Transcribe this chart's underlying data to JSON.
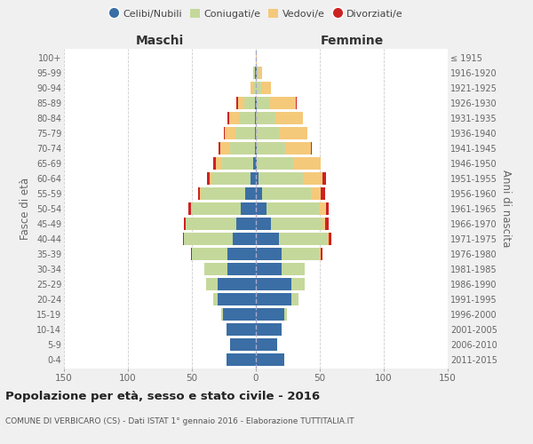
{
  "age_groups": [
    "0-4",
    "5-9",
    "10-14",
    "15-19",
    "20-24",
    "25-29",
    "30-34",
    "35-39",
    "40-44",
    "45-49",
    "50-54",
    "55-59",
    "60-64",
    "65-69",
    "70-74",
    "75-79",
    "80-84",
    "85-89",
    "90-94",
    "95-99",
    "100+"
  ],
  "birth_years": [
    "2011-2015",
    "2006-2010",
    "2001-2005",
    "1996-2000",
    "1991-1995",
    "1986-1990",
    "1981-1985",
    "1976-1980",
    "1971-1975",
    "1966-1970",
    "1961-1965",
    "1956-1960",
    "1951-1955",
    "1946-1950",
    "1941-1945",
    "1936-1940",
    "1931-1935",
    "1926-1930",
    "1921-1925",
    "1916-1920",
    "≤ 1915"
  ],
  "males": {
    "celibe": [
      23,
      20,
      23,
      26,
      30,
      30,
      22,
      22,
      18,
      15,
      12,
      8,
      4,
      2,
      1,
      1,
      1,
      1,
      0,
      1,
      0
    ],
    "coniugato": [
      0,
      0,
      0,
      1,
      3,
      9,
      18,
      28,
      38,
      40,
      38,
      35,
      30,
      25,
      20,
      15,
      12,
      8,
      2,
      1,
      0
    ],
    "vedovo": [
      0,
      0,
      0,
      0,
      0,
      0,
      0,
      0,
      0,
      0,
      1,
      1,
      2,
      4,
      7,
      8,
      8,
      5,
      2,
      0,
      0
    ],
    "divorziato": [
      0,
      0,
      0,
      0,
      0,
      0,
      0,
      1,
      1,
      1,
      2,
      1,
      2,
      2,
      1,
      1,
      1,
      1,
      0,
      0,
      0
    ]
  },
  "females": {
    "nubile": [
      22,
      17,
      20,
      22,
      28,
      28,
      20,
      20,
      18,
      12,
      8,
      5,
      2,
      1,
      1,
      0,
      0,
      1,
      0,
      1,
      0
    ],
    "coniugata": [
      0,
      0,
      0,
      2,
      5,
      10,
      18,
      30,
      38,
      40,
      42,
      38,
      35,
      28,
      22,
      18,
      15,
      10,
      4,
      1,
      0
    ],
    "vedova": [
      0,
      0,
      0,
      0,
      0,
      0,
      0,
      1,
      1,
      2,
      5,
      8,
      15,
      22,
      20,
      22,
      22,
      20,
      8,
      3,
      1
    ],
    "divorziata": [
      0,
      0,
      0,
      0,
      0,
      0,
      0,
      1,
      2,
      3,
      2,
      3,
      3,
      0,
      1,
      0,
      0,
      1,
      0,
      0,
      0
    ]
  },
  "colors": {
    "celibe": "#3A6EA5",
    "coniugato": "#C5D89B",
    "vedovo": "#F5C97A",
    "divorziato": "#CC2222"
  },
  "xlim": 150,
  "title": "Popolazione per età, sesso e stato civile - 2016",
  "subtitle": "COMUNE DI VERBICARO (CS) - Dati ISTAT 1° gennaio 2016 - Elaborazione TUTTITALIA.IT",
  "ylabel": "Fasce di età",
  "ylabel_right": "Anni di nascita",
  "label_maschi": "Maschi",
  "label_femmine": "Femmine",
  "legend_labels": [
    "Celibi/Nubili",
    "Coniugati/e",
    "Vedovi/e",
    "Divorziati/e"
  ],
  "bg_color": "#f0f0f0",
  "plot_bg_color": "#ffffff"
}
